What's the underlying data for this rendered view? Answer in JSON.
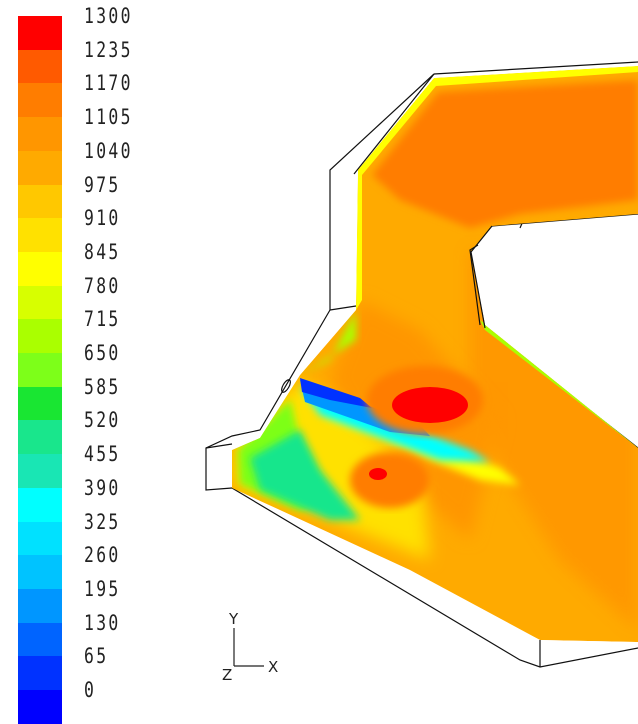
{
  "chart_data": {
    "type": "heatmap",
    "colorbar": {
      "ticks": [
        "1300",
        "1235",
        "1170",
        "1105",
        "1040",
        "975",
        "910",
        "845",
        "780",
        "715",
        "650",
        "585",
        "520",
        "455",
        "390",
        "325",
        "260",
        "195",
        "130",
        "65",
        "0"
      ],
      "colors": [
        "#ff0000",
        "#ff5a00",
        "#ff7d00",
        "#ff9600",
        "#ffaa00",
        "#ffc800",
        "#ffe100",
        "#ffff00",
        "#d7ff00",
        "#aaff00",
        "#7dff19",
        "#19e632",
        "#19e68c",
        "#19e6b4",
        "#00ffff",
        "#00e1ff",
        "#00c3ff",
        "#0096ff",
        "#0064ff",
        "#0032ff",
        "#0000ff"
      ],
      "min": 0,
      "max": 1300
    },
    "axes": {
      "y_label": "Y",
      "x_label": "X",
      "z_label": "Z"
    }
  }
}
